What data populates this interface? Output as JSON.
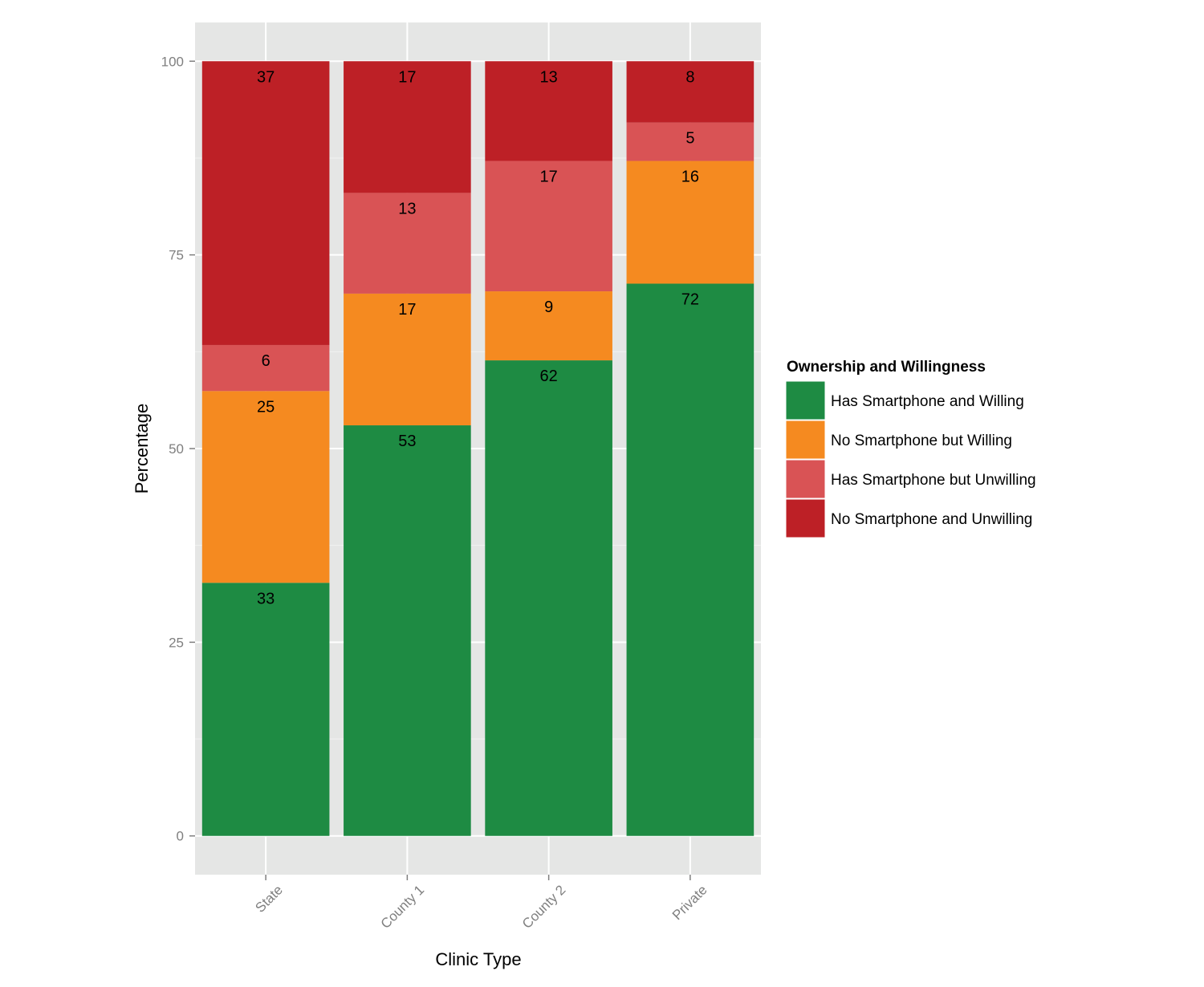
{
  "chart_data": {
    "type": "bar",
    "stacked": true,
    "title": "",
    "xlabel": "Clinic Type",
    "ylabel": "Percentage",
    "ylim": [
      -5,
      105
    ],
    "yticks": [
      0,
      25,
      50,
      75,
      100
    ],
    "grid": true,
    "categories": [
      "State",
      "County 1",
      "County 2",
      "Private"
    ],
    "legend": {
      "title": "Ownership and Willingness",
      "placement": "right"
    },
    "series": [
      {
        "name": "Has Smartphone and Willing",
        "color": "#1e8b43",
        "values": [
          33,
          53,
          62,
          72
        ]
      },
      {
        "name": "No Smartphone but Willing",
        "color": "#f58a20",
        "values": [
          25,
          17,
          9,
          16
        ]
      },
      {
        "name": "Has Smartphone but Unwilling",
        "color": "#d95355",
        "values": [
          6,
          13,
          17,
          5
        ]
      },
      {
        "name": "No Smartphone and Unwilling",
        "color": "#bd2026",
        "values": [
          37,
          17,
          13,
          8
        ]
      }
    ],
    "panel_background": "#e5e6e5"
  }
}
